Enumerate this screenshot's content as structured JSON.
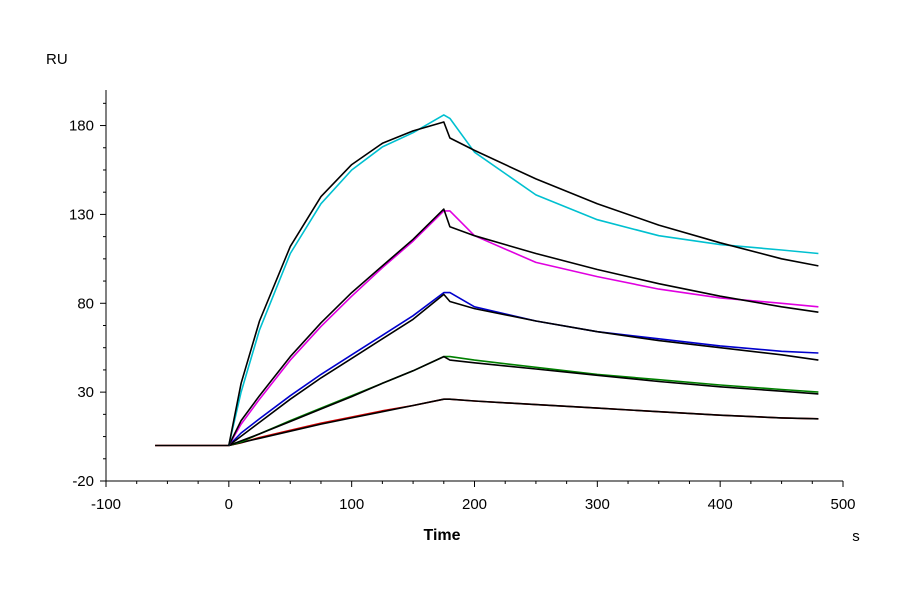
{
  "chart_data": {
    "type": "line",
    "title": "",
    "xlabel": "Time",
    "ylabel": "RU",
    "x_unit": "s",
    "xlim": [
      -100,
      500
    ],
    "ylim": [
      -20,
      200
    ],
    "x_ticks": [
      -100,
      0,
      100,
      200,
      300,
      400,
      500
    ],
    "y_ticks": [
      -20,
      30,
      80,
      130,
      180
    ],
    "grid": false,
    "legend": "none",
    "series": [
      {
        "color": "#d40000",
        "kind": "measured",
        "x": [
          -60,
          -40,
          -20,
          0,
          10,
          25,
          50,
          75,
          100,
          125,
          150,
          175,
          180,
          200,
          250,
          300,
          350,
          400,
          450,
          480
        ],
        "y": [
          0,
          0,
          0,
          0,
          1.5,
          4.5,
          8.5,
          12.5,
          16,
          19.5,
          22.5,
          26,
          26,
          25,
          23,
          21,
          19,
          17,
          15.5,
          15
        ]
      },
      {
        "color": "#000000",
        "kind": "fit",
        "x": [
          -60,
          0,
          25,
          50,
          75,
          100,
          125,
          150,
          175,
          180,
          200,
          250,
          300,
          350,
          400,
          450,
          480
        ],
        "y": [
          0,
          0,
          4,
          8,
          12,
          15.5,
          19,
          22.5,
          26,
          26,
          25,
          23,
          21,
          19,
          17,
          15.5,
          15
        ]
      },
      {
        "color": "#008000",
        "kind": "measured",
        "x": [
          0,
          10,
          25,
          50,
          75,
          100,
          125,
          150,
          175,
          180,
          200,
          250,
          300,
          350,
          400,
          450,
          480
        ],
        "y": [
          0,
          2,
          6.5,
          14,
          21,
          28,
          35,
          42,
          50,
          50,
          48,
          44,
          40,
          37,
          34,
          31.5,
          30
        ]
      },
      {
        "color": "#000000",
        "kind": "fit",
        "x": [
          0,
          25,
          50,
          75,
          100,
          125,
          150,
          175,
          180,
          200,
          250,
          300,
          350,
          400,
          450,
          480
        ],
        "y": [
          0,
          6.5,
          13.5,
          20.5,
          27.5,
          35,
          42,
          50,
          48,
          46.5,
          43,
          39.5,
          36,
          33,
          30.5,
          29
        ]
      },
      {
        "color": "#0000cc",
        "kind": "measured",
        "x": [
          0,
          10,
          25,
          50,
          75,
          100,
          125,
          150,
          175,
          180,
          200,
          250,
          300,
          350,
          400,
          450,
          480
        ],
        "y": [
          0,
          7,
          15,
          28,
          40,
          51,
          62,
          73,
          86,
          86,
          78,
          70,
          64,
          60,
          56,
          53,
          52
        ]
      },
      {
        "color": "#000000",
        "kind": "fit",
        "x": [
          0,
          25,
          50,
          75,
          100,
          125,
          150,
          175,
          180,
          200,
          250,
          300,
          350,
          400,
          450,
          480
        ],
        "y": [
          0,
          13,
          26,
          38,
          49,
          60,
          71,
          85,
          81,
          77,
          70,
          64,
          59,
          55,
          51,
          48
        ]
      },
      {
        "color": "#e000e0",
        "kind": "measured",
        "x": [
          0,
          10,
          25,
          50,
          75,
          100,
          125,
          150,
          175,
          180,
          200,
          250,
          300,
          350,
          400,
          450,
          480
        ],
        "y": [
          0,
          12,
          26,
          48,
          67,
          84,
          100,
          115,
          132,
          132,
          118,
          103,
          95,
          88,
          83,
          80,
          78
        ]
      },
      {
        "color": "#000000",
        "kind": "fit",
        "x": [
          0,
          10,
          25,
          50,
          75,
          100,
          125,
          150,
          175,
          180,
          200,
          250,
          300,
          350,
          400,
          450,
          480
        ],
        "y": [
          0,
          14,
          28,
          50,
          69,
          86,
          101,
          116,
          133,
          123,
          118,
          108,
          99,
          91,
          84,
          78,
          75
        ]
      },
      {
        "color": "#00c0d0",
        "kind": "measured",
        "x": [
          0,
          10,
          25,
          50,
          75,
          100,
          125,
          150,
          175,
          180,
          200,
          250,
          300,
          350,
          400,
          450,
          480
        ],
        "y": [
          0,
          30,
          65,
          108,
          136,
          155,
          168,
          176,
          186,
          184,
          165,
          141,
          127,
          118,
          113,
          110,
          108
        ]
      },
      {
        "color": "#000000",
        "kind": "fit",
        "x": [
          0,
          10,
          25,
          50,
          75,
          100,
          125,
          150,
          175,
          180,
          200,
          250,
          300,
          350,
          400,
          450,
          480
        ],
        "y": [
          0,
          35,
          70,
          112,
          140,
          158,
          170,
          177,
          182,
          173,
          166,
          150,
          136,
          124,
          114,
          105,
          101
        ]
      }
    ]
  }
}
